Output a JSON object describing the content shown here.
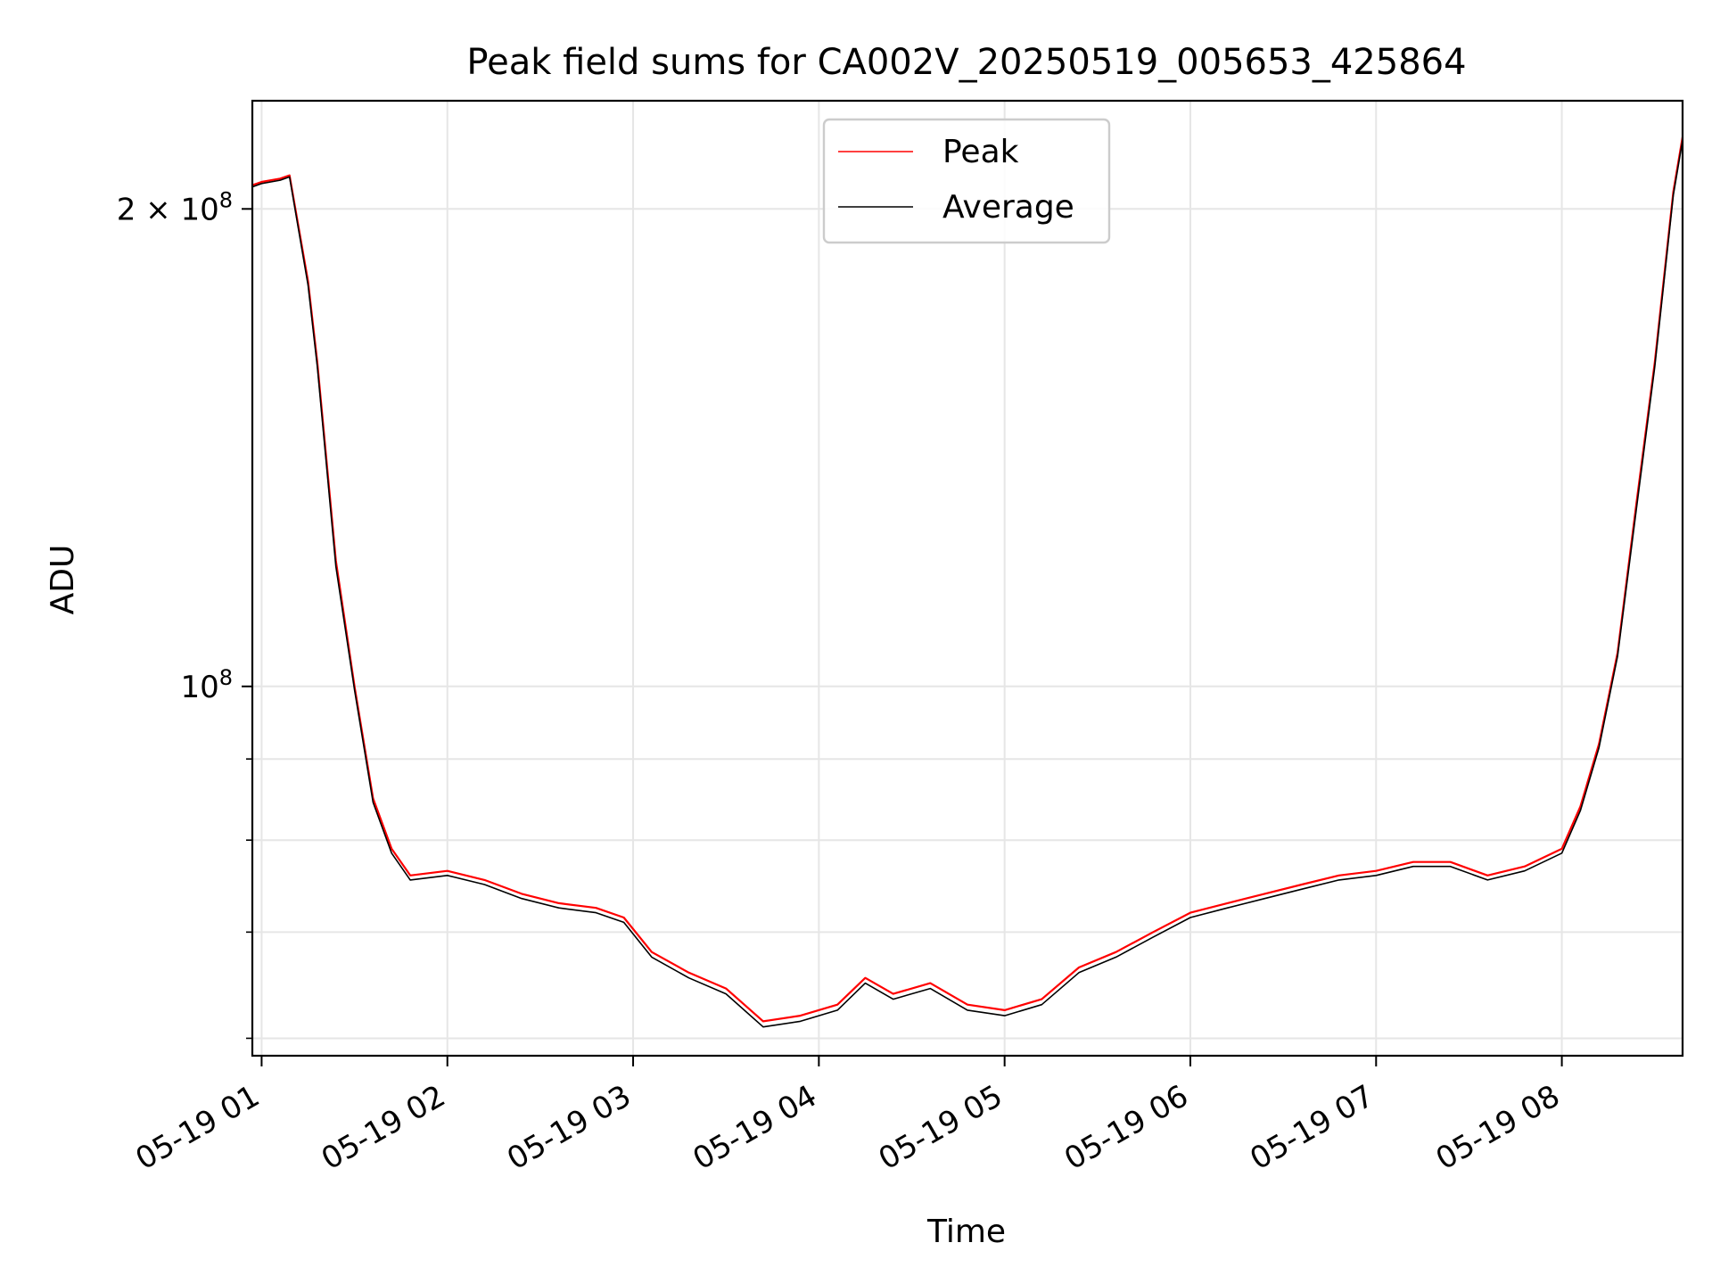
{
  "chart_data": {
    "type": "line",
    "title": "Peak field sums for CA002V_20250519_005653_425864",
    "xlabel": "Time",
    "ylabel": "ADU",
    "yscale": "log",
    "grid": true,
    "legend_position": "top-center",
    "xlim": [
      "05-19 00:57",
      "05-19 08:39"
    ],
    "ylim": [
      58500000,
      234000000
    ],
    "xticks": [
      {
        "label": "05-19 01",
        "hour": 1
      },
      {
        "label": "05-19 02",
        "hour": 2
      },
      {
        "label": "05-19 03",
        "hour": 3
      },
      {
        "label": "05-19 04",
        "hour": 4
      },
      {
        "label": "05-19 05",
        "hour": 5
      },
      {
        "label": "05-19 06",
        "hour": 6
      },
      {
        "label": "05-19 07",
        "hour": 7
      },
      {
        "label": "05-19 08",
        "hour": 8
      }
    ],
    "yticks": [
      {
        "mant": "2",
        "exp": "8",
        "value": 200000000
      },
      {
        "mant": "",
        "exp": "8",
        "value": 100000000
      }
    ],
    "x_units": "hours (05-19)",
    "series": [
      {
        "name": "Peak",
        "color": "#ff0000",
        "x": [
          0.95,
          1.0,
          1.1,
          1.15,
          1.25,
          1.3,
          1.4,
          1.5,
          1.6,
          1.7,
          1.8,
          2.0,
          2.2,
          2.4,
          2.6,
          2.8,
          2.95,
          3.1,
          3.3,
          3.5,
          3.7,
          3.9,
          4.1,
          4.25,
          4.4,
          4.6,
          4.8,
          5.0,
          5.2,
          5.4,
          5.6,
          5.8,
          6.0,
          6.2,
          6.4,
          6.6,
          6.8,
          7.0,
          7.2,
          7.4,
          7.6,
          7.8,
          8.0,
          8.1,
          8.2,
          8.3,
          8.4,
          8.5,
          8.6,
          8.65
        ],
        "values": [
          207000000,
          208000000,
          209000000,
          210000000,
          180000000,
          160000000,
          120000000,
          100000000,
          85000000,
          79000000,
          76000000,
          76500000,
          75500000,
          74000000,
          73000000,
          72500000,
          71500000,
          68000000,
          66000000,
          64500000,
          61500000,
          62000000,
          63000000,
          65500000,
          64000000,
          65000000,
          63000000,
          62500000,
          63500000,
          66500000,
          68000000,
          70000000,
          72000000,
          73000000,
          74000000,
          75000000,
          76000000,
          76500000,
          77500000,
          77500000,
          76000000,
          77000000,
          79000000,
          84000000,
          92000000,
          105000000,
          130000000,
          160000000,
          205000000,
          222000000
        ]
      },
      {
        "name": "Average",
        "color": "#000000",
        "x": [
          0.95,
          1.0,
          1.1,
          1.15,
          1.25,
          1.3,
          1.4,
          1.5,
          1.6,
          1.7,
          1.8,
          2.0,
          2.2,
          2.4,
          2.6,
          2.8,
          2.95,
          3.1,
          3.3,
          3.5,
          3.7,
          3.9,
          4.1,
          4.25,
          4.4,
          4.6,
          4.8,
          5.0,
          5.2,
          5.4,
          5.6,
          5.8,
          6.0,
          6.2,
          6.4,
          6.6,
          6.8,
          7.0,
          7.2,
          7.4,
          7.6,
          7.8,
          8.0,
          8.1,
          8.2,
          8.3,
          8.4,
          8.5,
          8.6,
          8.65
        ],
        "values": [
          206500000,
          207500000,
          208500000,
          209500000,
          179000000,
          159000000,
          119000000,
          99500000,
          84500000,
          78500000,
          75500000,
          76000000,
          75000000,
          73500000,
          72500000,
          72000000,
          71000000,
          67500000,
          65500000,
          64000000,
          61000000,
          61500000,
          62500000,
          65000000,
          63500000,
          64500000,
          62500000,
          62000000,
          63000000,
          66000000,
          67500000,
          69500000,
          71500000,
          72500000,
          73500000,
          74500000,
          75500000,
          76000000,
          77000000,
          77000000,
          75500000,
          76500000,
          78500000,
          83500000,
          91500000,
          104500000,
          129000000,
          159000000,
          204000000,
          221000000
        ]
      }
    ]
  }
}
